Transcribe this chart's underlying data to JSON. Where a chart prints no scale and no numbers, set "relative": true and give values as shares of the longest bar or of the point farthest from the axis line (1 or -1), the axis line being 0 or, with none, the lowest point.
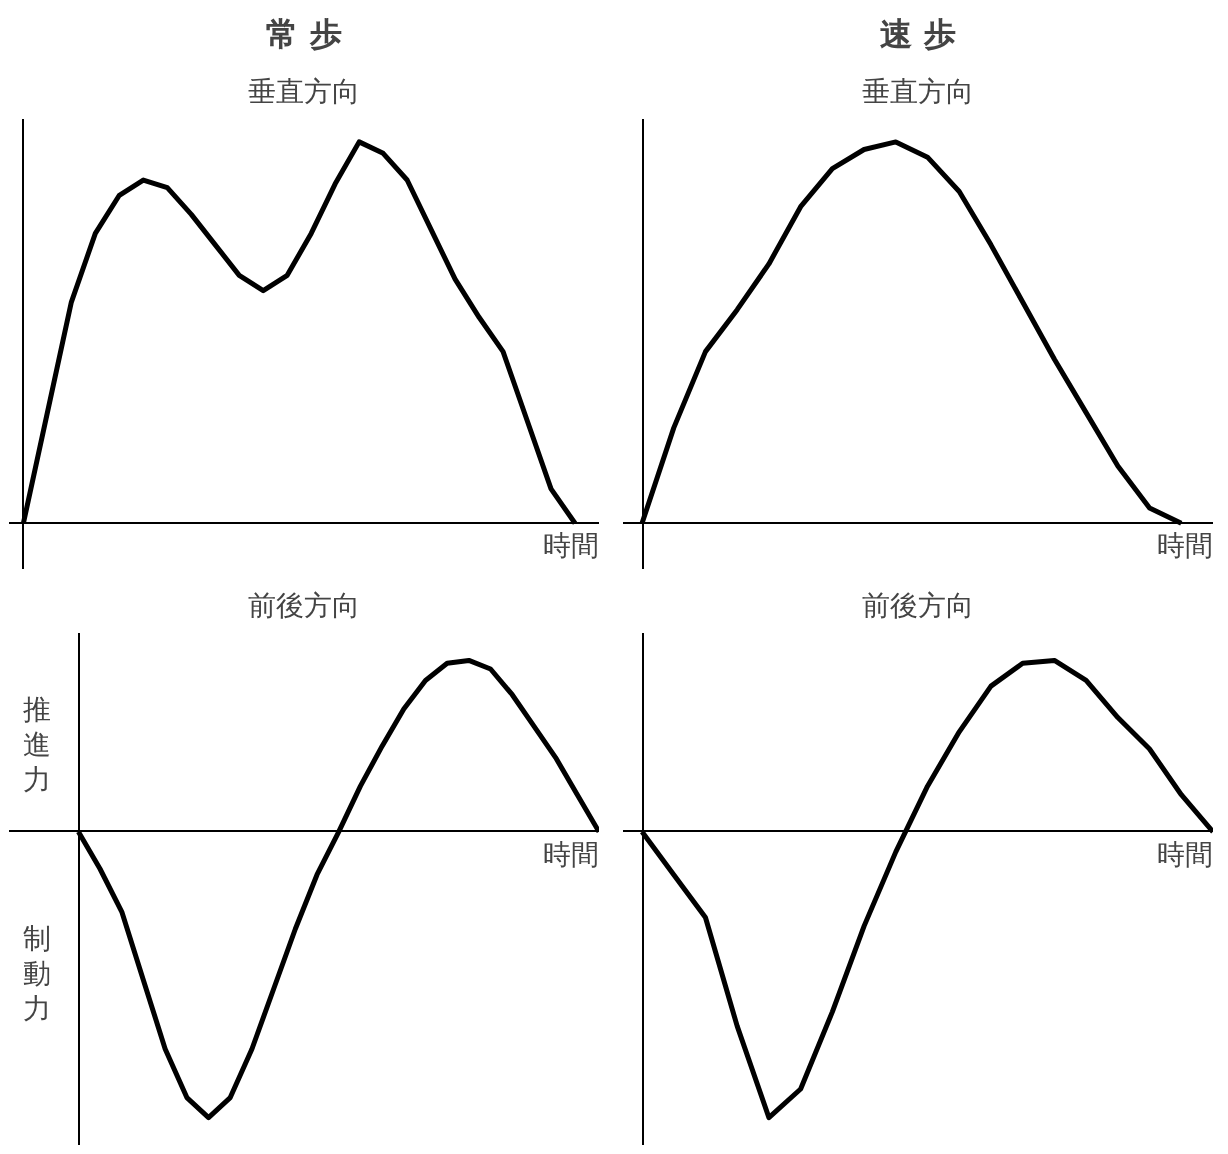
{
  "chart_data": [
    {
      "type": "line",
      "title": "常 歩",
      "subtitle": "垂直方向",
      "xlabel": "時間",
      "relative": true,
      "categories": [
        null,
        null,
        null,
        null,
        null,
        null,
        null,
        null,
        null,
        null,
        null,
        null,
        null,
        null,
        null,
        null,
        null,
        null,
        null,
        null,
        null,
        null,
        null,
        null,
        null
      ],
      "series": [
        {
          "color": "#000000",
          "values": [
            0,
            0.29,
            0.58,
            0.76,
            0.86,
            0.9,
            0.88,
            0.81,
            0.73,
            0.65,
            0.61,
            0.65,
            0.76,
            0.89,
            1.0,
            0.97,
            0.9,
            0.77,
            0.64,
            0.54,
            0.45,
            0.27,
            0.09,
            0,
            null
          ]
        }
      ]
    },
    {
      "type": "line",
      "title": "速 歩",
      "subtitle": "垂直方向",
      "xlabel": "時間",
      "relative": true,
      "categories": [
        null,
        null,
        null,
        null,
        null,
        null,
        null,
        null,
        null,
        null,
        null,
        null,
        null,
        null,
        null,
        null,
        null,
        null,
        null
      ],
      "series": [
        {
          "color": "#000000",
          "values": [
            0,
            0.25,
            0.45,
            0.56,
            0.68,
            0.83,
            0.93,
            0.98,
            1.0,
            0.96,
            0.87,
            0.73,
            0.58,
            0.43,
            0.29,
            0.15,
            0.04,
            0,
            null
          ]
        }
      ]
    },
    {
      "type": "line",
      "title": "前後方向",
      "xlabel": "時間",
      "relative": true,
      "annotations": [
        "推進力",
        "制動力"
      ],
      "categories": [
        null,
        null,
        null,
        null,
        null,
        null,
        null,
        null,
        null,
        null,
        null,
        null,
        null,
        null,
        null,
        null,
        null,
        null,
        null,
        null,
        null,
        null,
        null,
        null,
        null
      ],
      "series": [
        {
          "color": "#000000",
          "values": [
            0,
            -0.13,
            -0.28,
            -0.52,
            -0.76,
            -0.93,
            -1.0,
            -0.93,
            -0.76,
            -0.55,
            -0.34,
            -0.15,
            0,
            0.16,
            0.3,
            0.43,
            0.53,
            0.59,
            0.6,
            0.57,
            0.48,
            0.37,
            0.26,
            0.13,
            0
          ]
        }
      ]
    },
    {
      "type": "line",
      "title": "前後方向",
      "xlabel": "時間",
      "relative": true,
      "categories": [
        null,
        null,
        null,
        null,
        null,
        null,
        null,
        null,
        null,
        null,
        null,
        null,
        null,
        null,
        null,
        null,
        null,
        null,
        null
      ],
      "series": [
        {
          "color": "#000000",
          "values": [
            0,
            -0.15,
            -0.3,
            -0.68,
            -1.0,
            -0.9,
            -0.63,
            -0.33,
            -0.07,
            0.16,
            0.35,
            0.51,
            0.59,
            0.6,
            0.53,
            0.4,
            0.29,
            0.13,
            0
          ]
        }
      ]
    }
  ]
}
